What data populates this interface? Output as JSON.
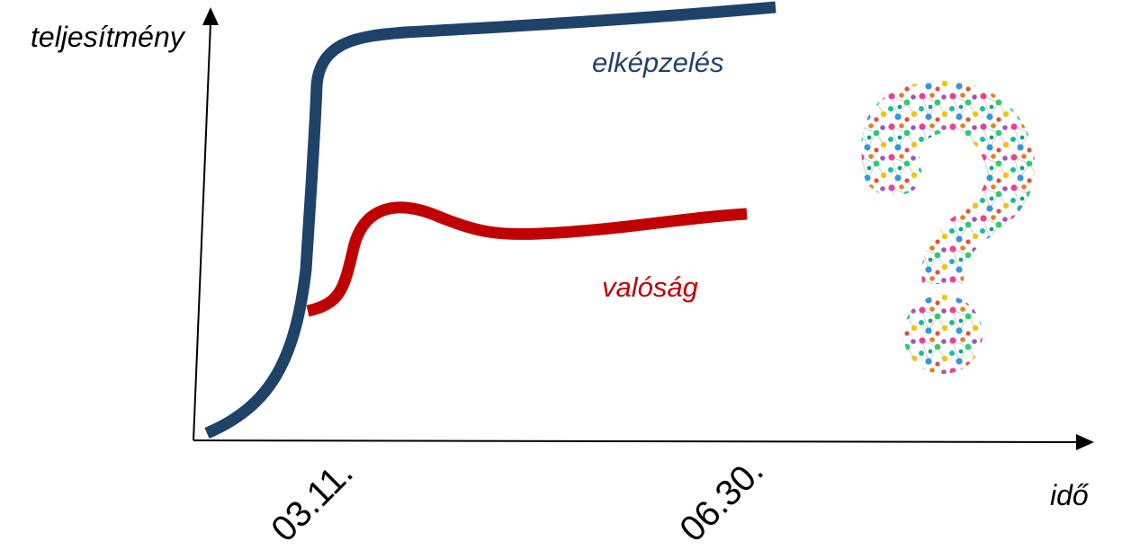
{
  "diagram": {
    "y_axis_label": "teljesítmény",
    "x_axis_label": "idő",
    "x_ticks": [
      "03.11.",
      "06.30."
    ],
    "series": [
      {
        "name": "elképzelés",
        "color": "#1f4268"
      },
      {
        "name": "valóság",
        "color": "#c00000"
      }
    ],
    "axis_color": "#000000",
    "decoration_icon": "question-mark-icon"
  }
}
